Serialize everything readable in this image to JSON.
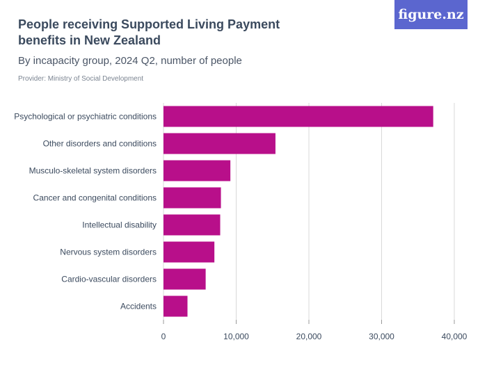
{
  "header": {
    "title": "People receiving Supported Living Payment benefits in New Zealand",
    "subtitle": "By incapacity group, 2024 Q2, number of people",
    "provider": "Provider: Ministry of Social Development",
    "logo_text": "figure.nz"
  },
  "colors": {
    "bar": "#b80f8a",
    "logo_bg": "#5b66cf",
    "grid": "#d9d9d9"
  },
  "chart_data": {
    "type": "bar",
    "orientation": "horizontal",
    "categories": [
      "Psychological or psychiatric conditions",
      "Other disorders and conditions",
      "Musculo-skeletal system disorders",
      "Cancer and congenital conditions",
      "Intellectual disability",
      "Nervous system disorders",
      "Cardio-vascular disorders",
      "Accidents"
    ],
    "values": [
      37100,
      15400,
      9200,
      7900,
      7800,
      7000,
      5800,
      3300
    ],
    "xlim": [
      0,
      40000
    ],
    "xticks": [
      0,
      10000,
      20000,
      30000,
      40000
    ],
    "xtick_labels": [
      "0",
      "10,000",
      "20,000",
      "30,000",
      "40,000"
    ],
    "grid": true
  }
}
